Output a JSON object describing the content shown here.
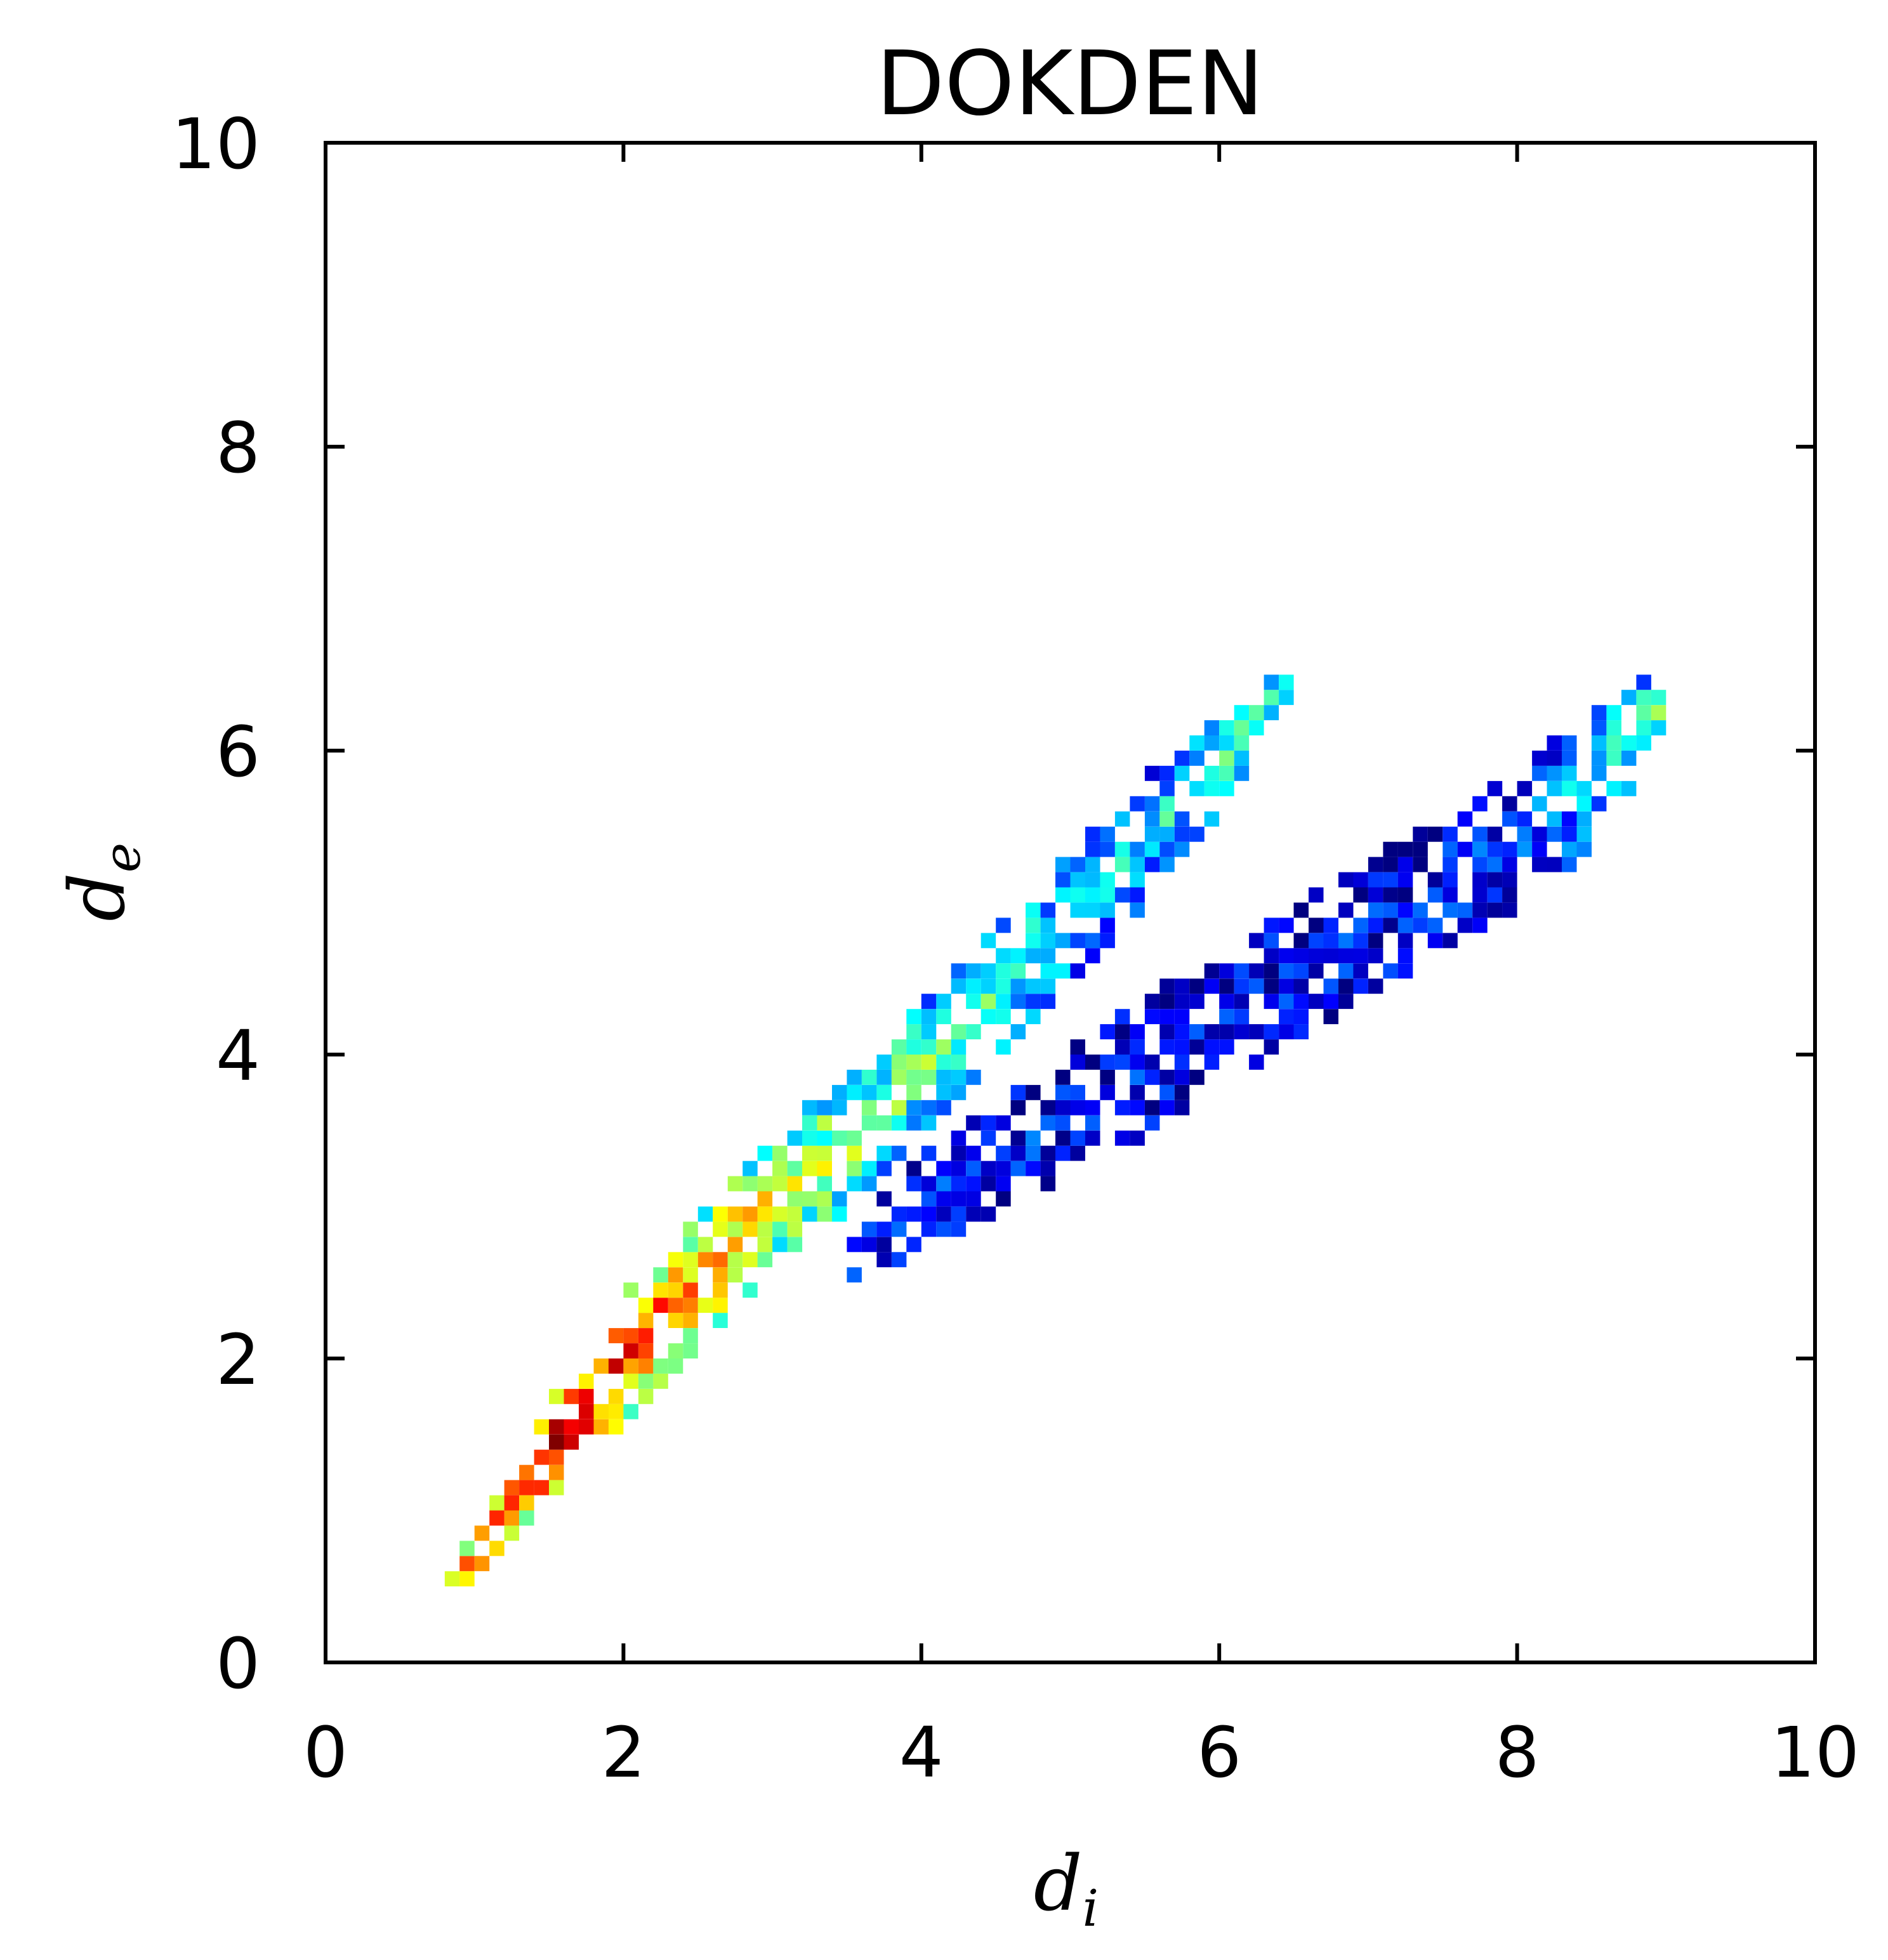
{
  "chart_data": {
    "type": "heatmap",
    "title": "DOKDEN",
    "xlabel": {
      "base": "d",
      "sub": "i"
    },
    "ylabel": {
      "base": "d",
      "sub": "e"
    },
    "xlim": [
      0,
      10
    ],
    "ylim": [
      0,
      10
    ],
    "xticks": [
      "0",
      "2",
      "4",
      "6",
      "8",
      "10"
    ],
    "yticks": [
      "0",
      "2",
      "4",
      "6",
      "8",
      "10"
    ],
    "grid": false,
    "colormap": "jet",
    "bin_size": 0.1,
    "clusters": [
      {
        "name": "upper-band",
        "points": [
          [
            0.7,
            0.35
          ],
          [
            1.0,
            0.7
          ],
          [
            1.5,
            1.4
          ],
          [
            2.0,
            2.0
          ],
          [
            2.5,
            2.5
          ],
          [
            3.0,
            3.0
          ],
          [
            3.5,
            3.4
          ],
          [
            4.0,
            3.9
          ],
          [
            4.5,
            4.4
          ],
          [
            5.0,
            4.9
          ],
          [
            5.5,
            5.4
          ],
          [
            6.0,
            5.9
          ],
          [
            6.4,
            6.4
          ]
        ],
        "half_width_de": [
          0.05,
          0.15,
          0.3,
          0.4,
          0.45,
          0.45,
          0.45,
          0.45,
          0.45,
          0.45,
          0.4,
          0.3,
          0.1
        ],
        "intensity": [
          0.8,
          0.95,
          1.0,
          0.9,
          0.75,
          0.65,
          0.55,
          0.45,
          0.4,
          0.35,
          0.35,
          0.4,
          0.45
        ]
      },
      {
        "name": "lower-band",
        "points": [
          [
            3.5,
            2.6
          ],
          [
            4.0,
            3.0
          ],
          [
            4.5,
            3.3
          ],
          [
            5.0,
            3.6
          ],
          [
            5.5,
            3.9
          ],
          [
            6.0,
            4.2
          ],
          [
            6.5,
            4.5
          ],
          [
            7.0,
            4.8
          ],
          [
            7.5,
            5.1
          ],
          [
            8.0,
            5.4
          ],
          [
            8.5,
            5.8
          ],
          [
            8.9,
            6.2
          ]
        ],
        "half_width_de": [
          0.2,
          0.3,
          0.35,
          0.4,
          0.45,
          0.45,
          0.45,
          0.45,
          0.45,
          0.45,
          0.45,
          0.35
        ],
        "intensity": [
          0.15,
          0.15,
          0.15,
          0.12,
          0.12,
          0.12,
          0.12,
          0.12,
          0.15,
          0.2,
          0.35,
          0.5
        ]
      },
      {
        "name": "tail",
        "points": [
          [
            8.8,
            6.3
          ],
          [
            8.8,
            6.5
          ],
          [
            8.8,
            6.8
          ]
        ],
        "half_width_de": [
          0.1,
          0.1,
          0.1
        ],
        "intensity": [
          0.6,
          0.65,
          0.55
        ]
      }
    ]
  }
}
